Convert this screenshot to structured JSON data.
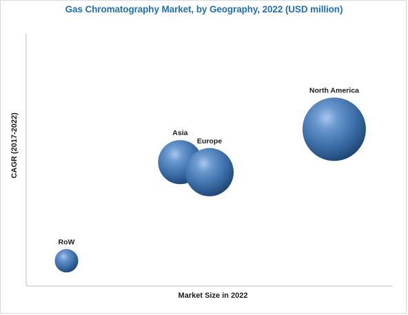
{
  "chart_data": {
    "type": "bubble",
    "title": "Gas Chromatography Market, by Geography, 2022 (USD million)",
    "xlabel": "Market Size in 2022",
    "ylabel": "CAGR (2017-2022)",
    "xlim": [
      0,
      100
    ],
    "ylim": [
      0,
      100
    ],
    "grid": false,
    "legend": "none",
    "bubble_color": "#3d6ea8",
    "points": [
      {
        "label": "Asia",
        "x": 42,
        "y": 49,
        "size": 32
      },
      {
        "label": "Europe",
        "x": 50,
        "y": 45,
        "size": 35
      },
      {
        "label": "North America",
        "x": 84,
        "y": 62,
        "size": 46
      },
      {
        "label": "RoW",
        "x": 11,
        "y": 10,
        "size": 17
      }
    ]
  }
}
